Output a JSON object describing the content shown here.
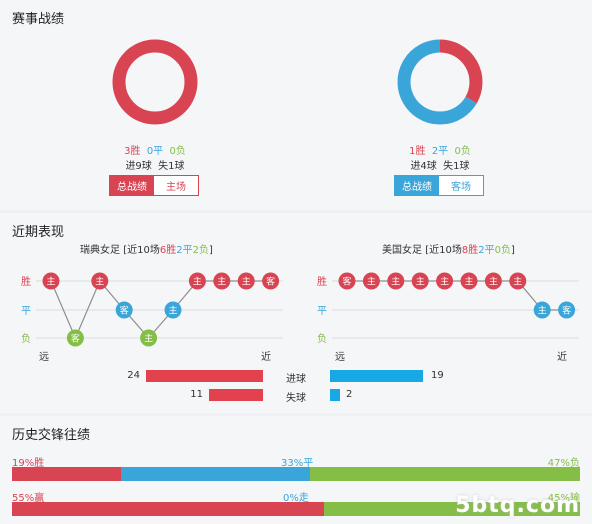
{
  "sections": {
    "record_title": "赛事战绩",
    "recent_title": "近期表现",
    "history_title": "历史交锋往绩"
  },
  "colors": {
    "red": "#d94452",
    "blue": "#3aa5d8",
    "green": "#85be47"
  },
  "home": {
    "donut": {
      "win": 3,
      "draw": 0,
      "loss": 0
    },
    "win_text": "3胜",
    "draw_text": "0平",
    "loss_text": "0负",
    "goals_text": "进9球",
    "conceded_text": "失1球",
    "tab_total": "总战绩",
    "tab_venue": "主场"
  },
  "away": {
    "donut": {
      "win": 1,
      "draw": 2,
      "loss": 0
    },
    "win_text": "1胜",
    "draw_text": "2平",
    "loss_text": "0负",
    "goals_text": "进4球",
    "conceded_text": "失1球",
    "tab_total": "总战绩",
    "tab_venue": "客场"
  },
  "recent": {
    "axis_labels": {
      "win": "胜",
      "draw": "平",
      "loss": "负",
      "far": "远",
      "near": "近"
    },
    "home": {
      "team": "瑞典女足",
      "summary_prefix": "[近10场",
      "wins_text": "6胜",
      "draws_text": "2平",
      "losses_text": "2负",
      "summary_suffix": "]",
      "matches": [
        {
          "result": "win",
          "venue": "主"
        },
        {
          "result": "loss",
          "venue": "客"
        },
        {
          "result": "win",
          "venue": "主"
        },
        {
          "result": "draw",
          "venue": "客"
        },
        {
          "result": "loss",
          "venue": "主"
        },
        {
          "result": "draw",
          "venue": "主"
        },
        {
          "result": "win",
          "venue": "主"
        },
        {
          "result": "win",
          "venue": "主"
        },
        {
          "result": "win",
          "venue": "主"
        },
        {
          "result": "win",
          "venue": "客"
        }
      ]
    },
    "away": {
      "team": "美国女足",
      "summary_prefix": "[近10场",
      "wins_text": "8胜",
      "draws_text": "2平",
      "losses_text": "0负",
      "summary_suffix": "]",
      "matches": [
        {
          "result": "win",
          "venue": "客"
        },
        {
          "result": "win",
          "venue": "主"
        },
        {
          "result": "win",
          "venue": "主"
        },
        {
          "result": "win",
          "venue": "主"
        },
        {
          "result": "win",
          "venue": "主"
        },
        {
          "result": "win",
          "venue": "主"
        },
        {
          "result": "win",
          "venue": "主"
        },
        {
          "result": "win",
          "venue": "主"
        },
        {
          "result": "draw",
          "venue": "主"
        },
        {
          "result": "draw",
          "venue": "客"
        }
      ]
    },
    "goals": {
      "label": "进球",
      "home": 24,
      "away": 19
    },
    "conceded": {
      "label": "失球",
      "home": 11,
      "away": 2
    },
    "bar_max": 24
  },
  "history": {
    "row1": {
      "left": "19%胜",
      "mid": "33%平",
      "right": "47%负",
      "values": [
        19,
        33,
        47
      ]
    },
    "row2": {
      "left": "55%赢",
      "mid": "0%走",
      "right": "45%输",
      "values": [
        55,
        0,
        45
      ]
    }
  },
  "watermark": "5btq.com"
}
